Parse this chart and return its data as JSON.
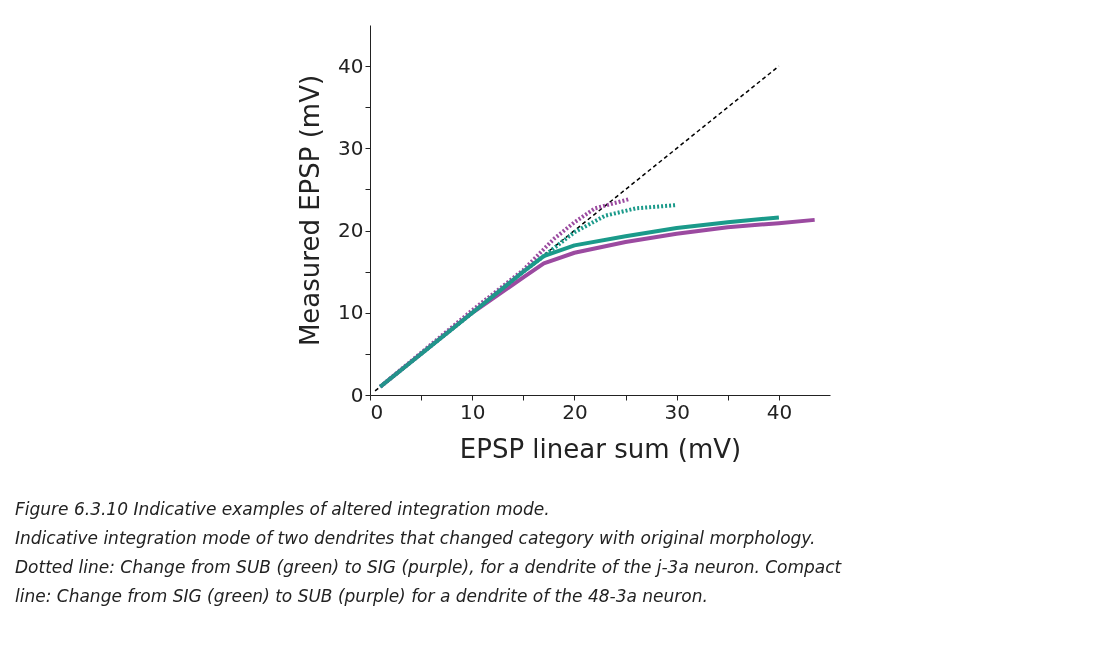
{
  "chart_data": {
    "type": "line",
    "xlabel": "EPSP linear sum (mV)",
    "ylabel": "Measured EPSP (mV)",
    "xlim": [
      0,
      45
    ],
    "ylim": [
      0,
      45
    ],
    "xticks": [
      0,
      {
        "value": 5,
        "label": null
      },
      10,
      {
        "value": 15,
        "label": null
      },
      20,
      {
        "value": 25,
        "label": null
      },
      30,
      {
        "value": 35,
        "label": null
      },
      40
    ],
    "yticks": [
      0,
      {
        "value": 5,
        "label": null
      },
      10,
      {
        "value": 15,
        "label": null
      },
      20,
      {
        "value": 25,
        "label": null
      },
      30,
      {
        "value": 35,
        "label": null
      },
      40
    ],
    "grid": false,
    "series": [
      {
        "color": "#000000",
        "line_style": "dashed",
        "x": [
          0.5,
          40
        ],
        "values": [
          0.5,
          40
        ]
      },
      {
        "color": "#9b4aa0",
        "line_style": "solid",
        "x": [
          1,
          10,
          15,
          17,
          20,
          25,
          30,
          35,
          40,
          43.5
        ],
        "values": [
          1,
          10,
          14.3,
          16,
          17.3,
          18.6,
          19.6,
          20.4,
          20.9,
          21.3
        ]
      },
      {
        "color": "#1a9a8a",
        "line_style": "solid",
        "x": [
          1,
          10,
          15,
          17,
          20,
          25,
          30,
          35,
          40
        ],
        "values": [
          1,
          10,
          15,
          16.9,
          18.2,
          19.3,
          20.3,
          21,
          21.6
        ]
      },
      {
        "color": "#9b4aa0",
        "line_style": "dotted",
        "x": [
          1,
          10,
          15,
          18,
          20,
          22,
          25.3
        ],
        "values": [
          1,
          10.3,
          15.2,
          19,
          21,
          22.7,
          23.8
        ]
      },
      {
        "color": "#1a9a8a",
        "line_style": "dotted",
        "x": [
          1,
          10,
          15,
          17,
          20,
          23,
          26,
          30
        ],
        "values": [
          1,
          10,
          15,
          16.9,
          19.8,
          21.8,
          22.7,
          23.1
        ]
      }
    ],
    "annotations": [
      "Figure 6.3.10  Indicative examples of altered integration mode.",
      "Indicative integration mode of two dendrites that changed category with original morphology.",
      "Dotted line: Change from SUB (green) to SIG (purple), for a dendrite of the j-3a neuron. Compact",
      "line: Change from SIG (green) to SUB (purple) for a dendrite of the 48-3a neuron."
    ]
  }
}
